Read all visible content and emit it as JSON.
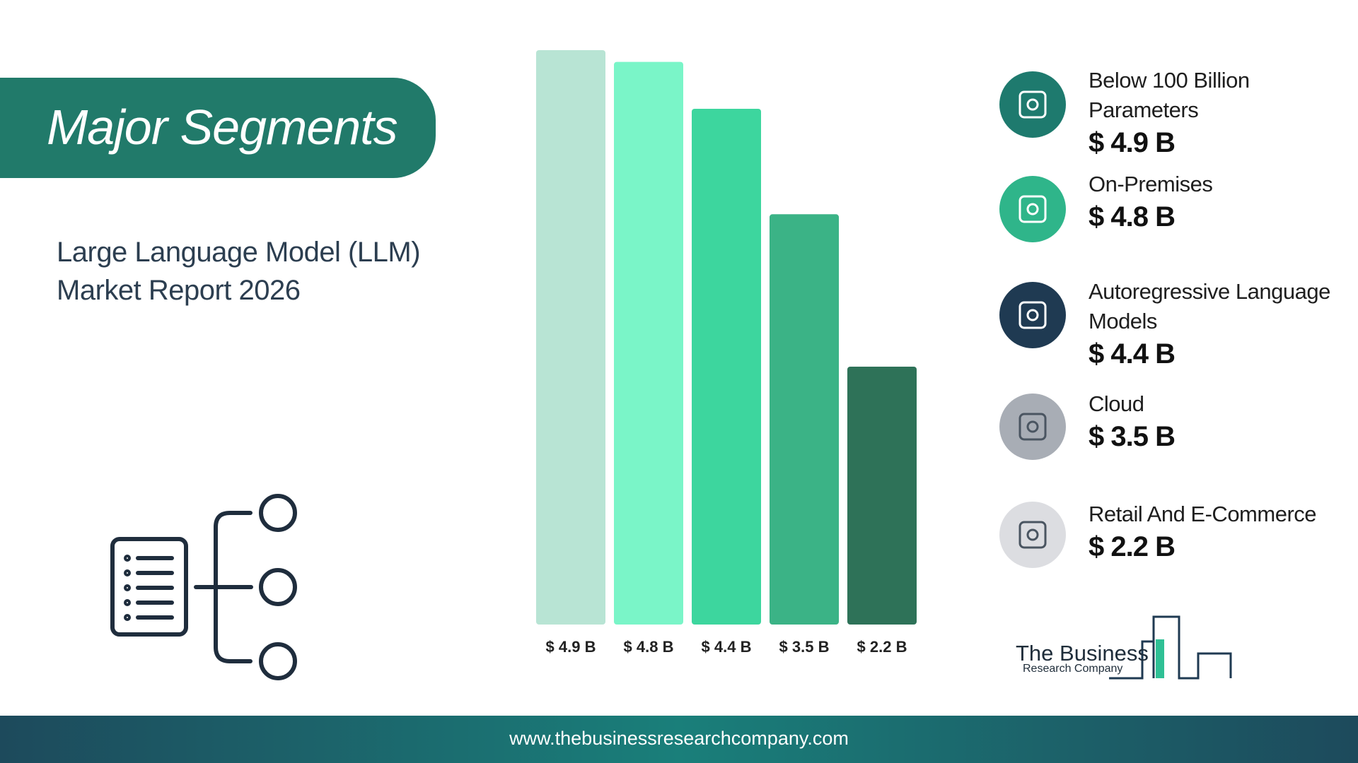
{
  "header": {
    "title": "Major Segments",
    "subtitle": "Large Language Model (LLM) Market Report 2026"
  },
  "chart_data": {
    "type": "bar",
    "categories": [
      "Below 100 Billion Parameters",
      "On-Premises",
      "Autoregressive Language Models",
      "Cloud",
      "Retail And E-Commerce"
    ],
    "values": [
      4.9,
      4.8,
      4.4,
      3.5,
      2.2
    ],
    "value_labels": [
      "$ 4.9 B",
      "$ 4.8 B",
      "$ 4.4 B",
      "$ 3.5 B",
      "$ 2.2 B"
    ],
    "colors": [
      "#b8e4d4",
      "#7af5c8",
      "#3dd69e",
      "#3bb386",
      "#2e7258"
    ]
  },
  "logo": {
    "name": "The Business",
    "tagline": "Research Company"
  },
  "footer": {
    "url": "www.thebusinessresearchcompany.com"
  }
}
